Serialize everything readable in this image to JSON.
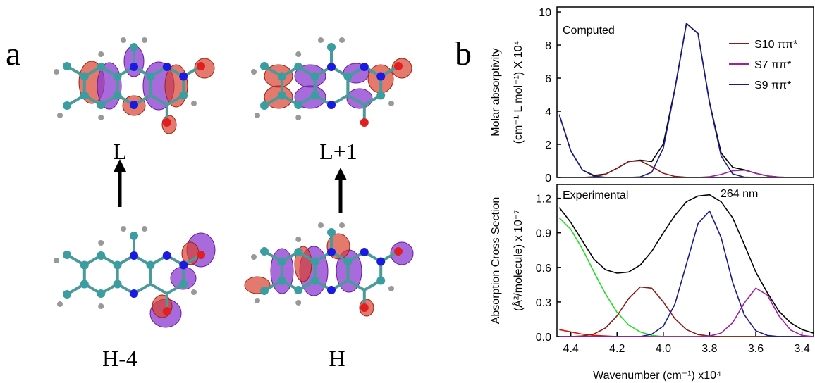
{
  "panels": [
    "a",
    "b"
  ],
  "orbitals": [
    "L",
    "L+1",
    "H-4",
    "H"
  ],
  "chart_data": [
    {
      "type": "line",
      "annotations": [
        "Computed"
      ],
      "ylabel": [
        "Molar absorptivity",
        "(cm⁻¹ L mol⁻¹) X 10⁴"
      ],
      "x": [
        4.45,
        4.4,
        4.35,
        4.3,
        4.25,
        4.2,
        4.15,
        4.1,
        4.05,
        4.0,
        3.95,
        3.9,
        3.85,
        3.8,
        3.75,
        3.7,
        3.65,
        3.6,
        3.55,
        3.5,
        3.45,
        3.4,
        3.35
      ],
      "xlim": [
        4.46,
        3.35
      ],
      "ylim": [
        0,
        10.3
      ],
      "yticks": [
        0,
        2,
        4,
        6,
        8,
        10
      ],
      "legend": "upper right",
      "series": [
        {
          "color": "#000000",
          "values": [
            3.8,
            1.6,
            0.45,
            0.12,
            0.2,
            0.55,
            0.96,
            1.04,
            0.96,
            2.02,
            5.36,
            9.31,
            8.7,
            4.54,
            1.48,
            0.61,
            0.46,
            0.25,
            0.09,
            0.02,
            0,
            0,
            0
          ]
        },
        {
          "name": "S10 ππ*",
          "color": "#8b1a1a",
          "values": [
            0,
            0,
            0,
            0.04,
            0.19,
            0.55,
            0.96,
            1.01,
            0.65,
            0.25,
            0.06,
            0.01,
            0,
            0,
            0,
            0,
            0,
            0,
            0,
            0,
            0,
            0,
            0
          ]
        },
        {
          "name": "S7 ππ*",
          "color": "#a020a0",
          "values": [
            0,
            0,
            0,
            0,
            0,
            0,
            0,
            0,
            0,
            0,
            0,
            0,
            0,
            0.04,
            0.18,
            0.4,
            0.44,
            0.25,
            0.09,
            0.02,
            0,
            0,
            0
          ]
        },
        {
          "name": "S9 ππ*",
          "color": "#1a1a8b",
          "values": [
            3.8,
            1.6,
            0.45,
            0.08,
            0.01,
            0,
            0,
            0.03,
            0.31,
            1.77,
            5.3,
            9.3,
            8.7,
            4.5,
            1.3,
            0.21,
            0.02,
            0,
            0,
            0,
            0,
            0,
            0
          ]
        }
      ]
    },
    {
      "type": "line",
      "annotations": [
        "Experimental",
        "264 nm"
      ],
      "ylabel": [
        "Absorption Cross Section",
        "(Å²/molecule) x 10⁻⁷"
      ],
      "xlabel": "Wavenumber (cm⁻¹) x10⁴",
      "x": [
        4.45,
        4.4,
        4.35,
        4.3,
        4.25,
        4.2,
        4.15,
        4.1,
        4.05,
        4.0,
        3.95,
        3.9,
        3.85,
        3.8,
        3.75,
        3.7,
        3.65,
        3.6,
        3.55,
        3.5,
        3.45,
        3.4,
        3.35
      ],
      "xlim": [
        4.46,
        3.35
      ],
      "xticks": [
        4.4,
        4.2,
        {
          "value": 4,
          "label": "4.0"
        },
        3.8,
        3.6,
        3.4
      ],
      "ylim": [
        0,
        1.32
      ],
      "yticks": [
        {
          "value": 0,
          "label": "0.0"
        },
        0.3,
        0.6,
        0.9,
        1.2
      ],
      "series": [
        {
          "color": "#000000",
          "values": [
            1.12,
            0.99,
            0.83,
            0.67,
            0.58,
            0.55,
            0.56,
            0.62,
            0.74,
            0.9,
            1.05,
            1.17,
            1.22,
            1.23,
            1.17,
            1.03,
            0.8,
            0.56,
            0.38,
            0.22,
            0.12,
            0.06,
            0.03
          ]
        },
        {
          "color": "#e01010",
          "values": [
            0.06,
            0.04,
            0.02,
            0.01,
            0.005,
            0,
            0,
            0,
            0,
            0,
            0,
            0,
            0,
            0,
            0,
            0,
            0,
            0,
            0,
            0,
            0,
            0,
            0
          ]
        },
        {
          "color": "#22dd22",
          "values": [
            1.03,
            0.93,
            0.76,
            0.56,
            0.37,
            0.21,
            0.1,
            0.04,
            0.01,
            0,
            0,
            0,
            0,
            0,
            0,
            0,
            0,
            0,
            0,
            0,
            0,
            0,
            0
          ]
        },
        {
          "color": "#8b1a1a",
          "values": [
            0,
            0,
            0.005,
            0.022,
            0.074,
            0.18,
            0.33,
            0.43,
            0.42,
            0.3,
            0.155,
            0.06,
            0.017,
            0.004,
            0,
            0,
            0,
            0,
            0,
            0,
            0,
            0,
            0
          ]
        },
        {
          "color": "#1a1a8b",
          "values": [
            0,
            0,
            0,
            0,
            0,
            0,
            0,
            0,
            0.02,
            0.09,
            0.28,
            0.63,
            0.98,
            1.09,
            0.86,
            0.47,
            0.19,
            0.05,
            0.01,
            0,
            0,
            0,
            0
          ]
        },
        {
          "color": "#a020a0",
          "values": [
            0,
            0,
            0,
            0,
            0,
            0,
            0,
            0,
            0,
            0,
            0,
            0,
            0,
            0.005,
            0.03,
            0.12,
            0.29,
            0.42,
            0.36,
            0.18,
            0.057,
            0.01,
            0
          ]
        }
      ]
    }
  ]
}
